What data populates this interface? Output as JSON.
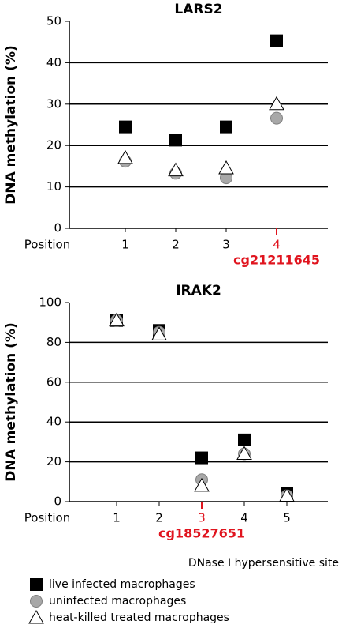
{
  "chart_data": [
    {
      "type": "scatter",
      "title": "LARS2",
      "y_label": "DNA methylation (%)",
      "x_label": "Position",
      "categories": [
        "1",
        "2",
        "3",
        "4"
      ],
      "highlight": {
        "index": 3,
        "label": "cg21211645",
        "color": "#e0141e"
      },
      "ylim": [
        0,
        50
      ],
      "yticks": [
        0,
        10,
        20,
        30,
        40,
        50
      ],
      "grid": true,
      "series": [
        {
          "name": "live infected macrophages",
          "marker": "square",
          "color": "#000000",
          "values": [
            24.5,
            21.3,
            24.5,
            45.3
          ]
        },
        {
          "name": "uninfected macrophages",
          "marker": "circle",
          "color": "#a8a8a8",
          "values": [
            16.2,
            13.3,
            12.2,
            26.6
          ]
        },
        {
          "name": "heat-killed treated macrophages",
          "marker": "triangle",
          "color": "#ffffff",
          "values": [
            17,
            14,
            14.5,
            30
          ]
        }
      ]
    },
    {
      "type": "scatter",
      "title": "IRAK2",
      "y_label": "DNA methylation (%)",
      "x_label": "Position",
      "categories": [
        "1",
        "2",
        "3",
        "4",
        "5"
      ],
      "highlight": {
        "index": 2,
        "label": "cg18527651",
        "color": "#e0141e"
      },
      "annotation": "DNase I hypersensitive site",
      "ylim": [
        0,
        100
      ],
      "yticks": [
        0,
        20,
        40,
        60,
        80,
        100
      ],
      "grid": true,
      "series": [
        {
          "marker": "square",
          "color": "#000000",
          "values": [
            91,
            86,
            22,
            31,
            4
          ]
        },
        {
          "marker": "circle",
          "color": "#a8a8a8",
          "values": [
            91,
            85,
            11,
            24,
            3
          ]
        },
        {
          "marker": "triangle",
          "color": "#ffffff",
          "values": [
            91,
            84,
            8,
            24,
            3
          ]
        }
      ]
    }
  ]
}
